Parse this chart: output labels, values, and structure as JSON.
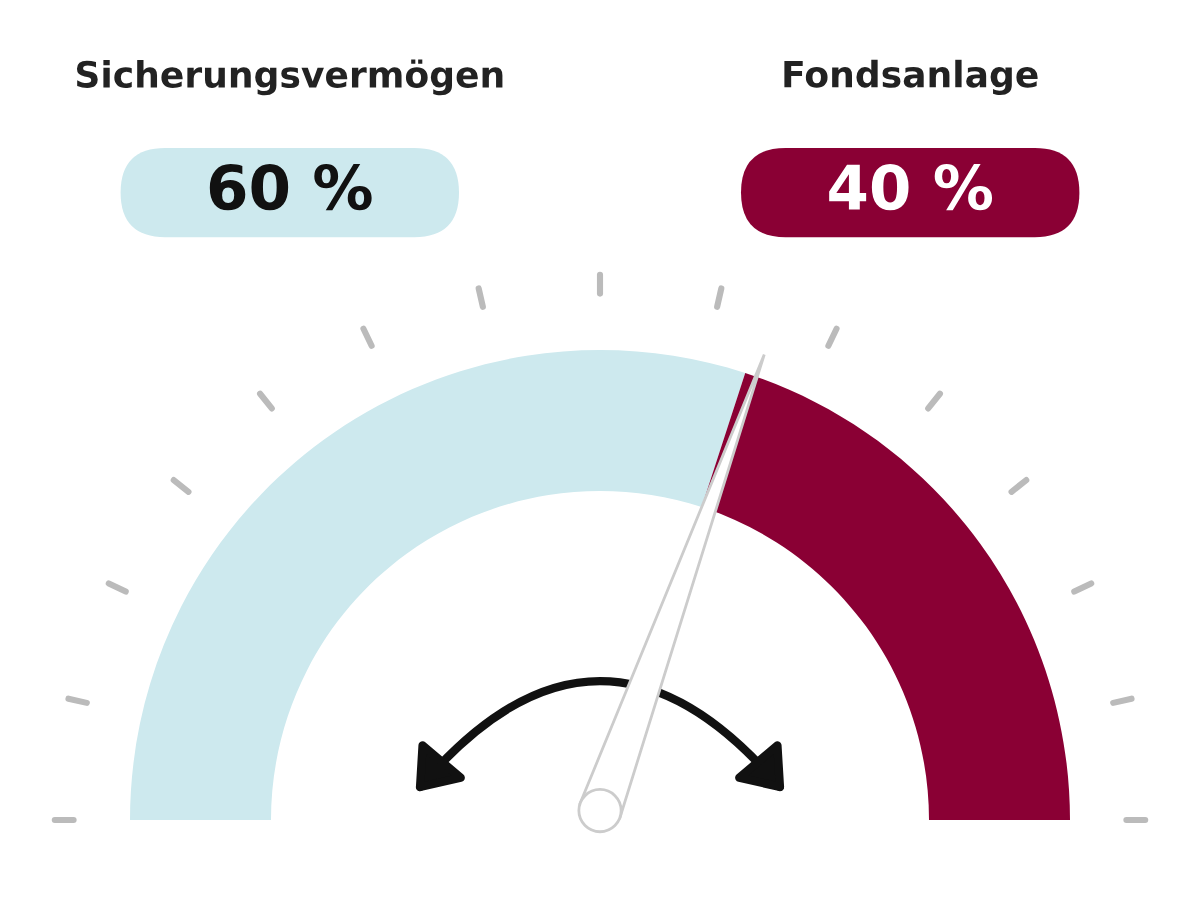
{
  "chart_data": {
    "type": "donut",
    "categories": [
      "Sicherungsvermögen",
      "Fondsanlage"
    ],
    "values": [
      60,
      40
    ],
    "colors": [
      "#cde9ee",
      "#8a0034"
    ],
    "value_labels": [
      "60 %",
      "40 %"
    ],
    "needle": "Fondsanlage"
  }
}
